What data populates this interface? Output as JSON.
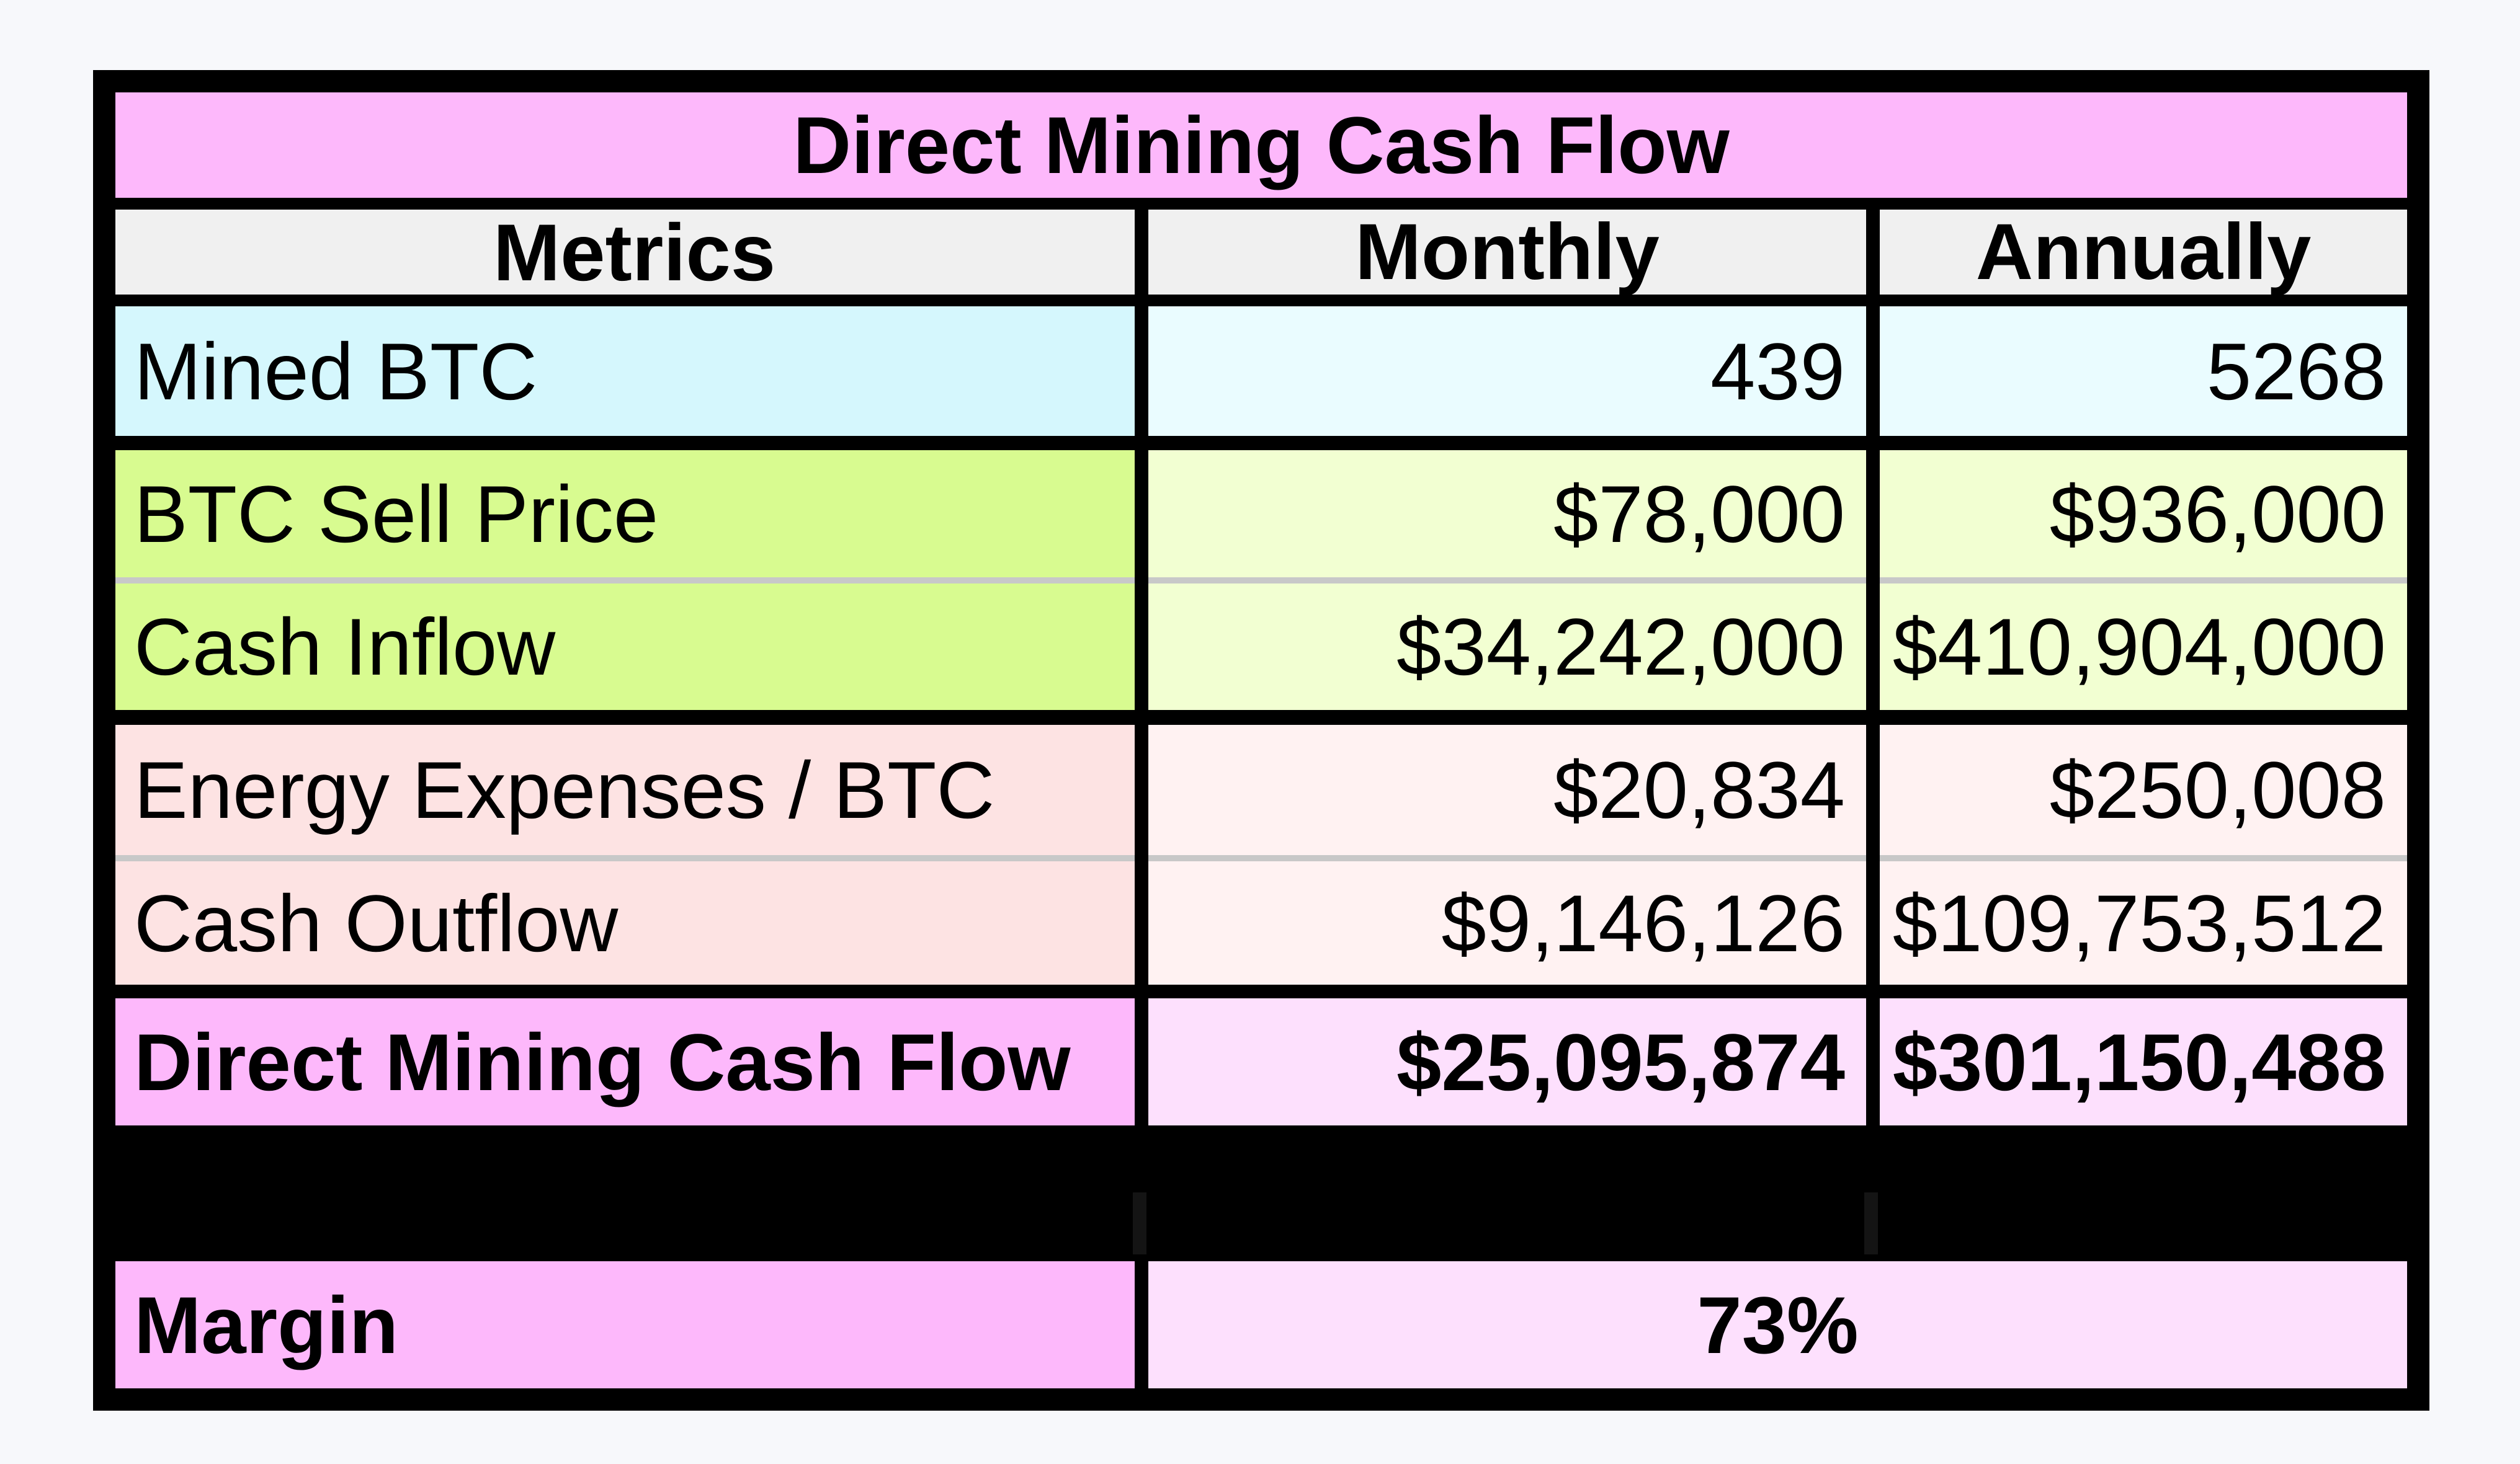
{
  "colors": {
    "title_bg": "#fdb8fb",
    "header_bg": "#f0f0f0",
    "mined_label_bg": "#d5f7fd",
    "mined_value_bg": "#eafcff",
    "inflow_label_bg": "#d8fb90",
    "inflow_value_bg": "#f2ffd2",
    "outflow_label_bg": "#fde3e3",
    "outflow_value_bg": "#fff2f2",
    "total_label_bg": "#fdb8fb",
    "total_value_bg": "#fde0fd",
    "border": "#000000"
  },
  "chart_data": {
    "type": "table",
    "title": "Direct Mining Cash Flow",
    "columns": [
      "Metrics",
      "Monthly",
      "Annually"
    ],
    "rows": [
      {
        "metric": "Mined BTC",
        "monthly": "439",
        "annually": "5268"
      },
      {
        "metric": "BTC Sell Price",
        "monthly": "$78,000",
        "annually": "$936,000"
      },
      {
        "metric": "Cash Inflow",
        "monthly": "$34,242,000",
        "annually": "$410,904,000"
      },
      {
        "metric": "Energy Expenses / BTC",
        "monthly": "$20,834",
        "annually": "$250,008"
      },
      {
        "metric": "Cash Outflow",
        "monthly": "$9,146,126",
        "annually": "$109,753,512"
      },
      {
        "metric": "Direct Mining Cash Flow",
        "monthly": "$25,095,874",
        "annually": "$301,150,488"
      }
    ],
    "margin": {
      "label": "Margin",
      "value": "73%"
    }
  }
}
